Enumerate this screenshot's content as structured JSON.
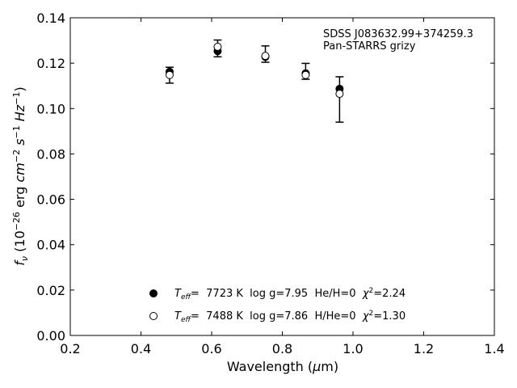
{
  "chart_data": {
    "type": "scatter",
    "xlabel": "Wavelength (μm)",
    "ylabel": "f_ν (10^-26 erg cm^-2 s^-1 Hz^-1)",
    "xlim": [
      0.2,
      1.4
    ],
    "ylim": [
      0.0,
      0.14
    ],
    "xticks": [
      "0.2",
      "0.4",
      "0.6",
      "0.8",
      "1.0",
      "1.2",
      "1.4"
    ],
    "yticks": [
      "0.00",
      "0.02",
      "0.04",
      "0.06",
      "0.08",
      "0.10",
      "0.12",
      "0.14"
    ],
    "annotations": [
      "SDSS J083632.99+374259.3",
      "Pan-STARRS grizy"
    ],
    "legend_location": "lower-center",
    "observed": {
      "x": [
        0.481,
        0.617,
        0.752,
        0.866,
        0.962
      ],
      "y": [
        0.1147,
        0.1265,
        0.124,
        0.1164,
        0.104
      ],
      "yerr": [
        0.0035,
        0.0037,
        0.0036,
        0.0035,
        0.01
      ]
    },
    "series": [
      {
        "name": "T_eff= 7723 K  log g=7.95  He/H=0  χ²=2.24",
        "marker": "filled-circle",
        "x": [
          0.481,
          0.617,
          0.752,
          0.866,
          0.962
        ],
        "y": [
          0.1162,
          0.1253,
          0.1228,
          0.1155,
          0.1087
        ]
      },
      {
        "name": "T_eff= 7488 K  log g=7.86  H/He=0  χ²=1.30",
        "marker": "open-circle",
        "x": [
          0.481,
          0.617,
          0.752,
          0.866,
          0.962
        ],
        "y": [
          0.1148,
          0.1272,
          0.1232,
          0.1148,
          0.1065
        ]
      }
    ],
    "legend": {
      "entries": [
        {
          "teff_label": "T",
          "teff_sub": "eff",
          "text1": "=  7723 K  log g=7.95  He/H=0  ",
          "chi_sym": "χ",
          "chi_sup": "2",
          "chi_val": "=2.24"
        },
        {
          "teff_label": "T",
          "teff_sub": "eff",
          "text1": "=  7488 K  log g=7.86  H/He=0  ",
          "chi_sym": "χ",
          "chi_sup": "2",
          "chi_val": "=1.30"
        }
      ]
    },
    "axis_text": {
      "xlabel_pre": "Wavelength (",
      "xlabel_mu": "μ",
      "xlabel_post": "m)",
      "ylabel_f": "f",
      "ylabel_nu": "ν",
      "ylabel_a": " (10",
      "ylabel_exp1": "−26",
      "ylabel_b": " erg ",
      "ylabel_cm": "cm",
      "ylabel_exp2": "−2",
      "ylabel_s": " s",
      "ylabel_exp3": "−1",
      "ylabel_hz": " Hz",
      "ylabel_exp4": "−1",
      "ylabel_c": ")"
    }
  }
}
